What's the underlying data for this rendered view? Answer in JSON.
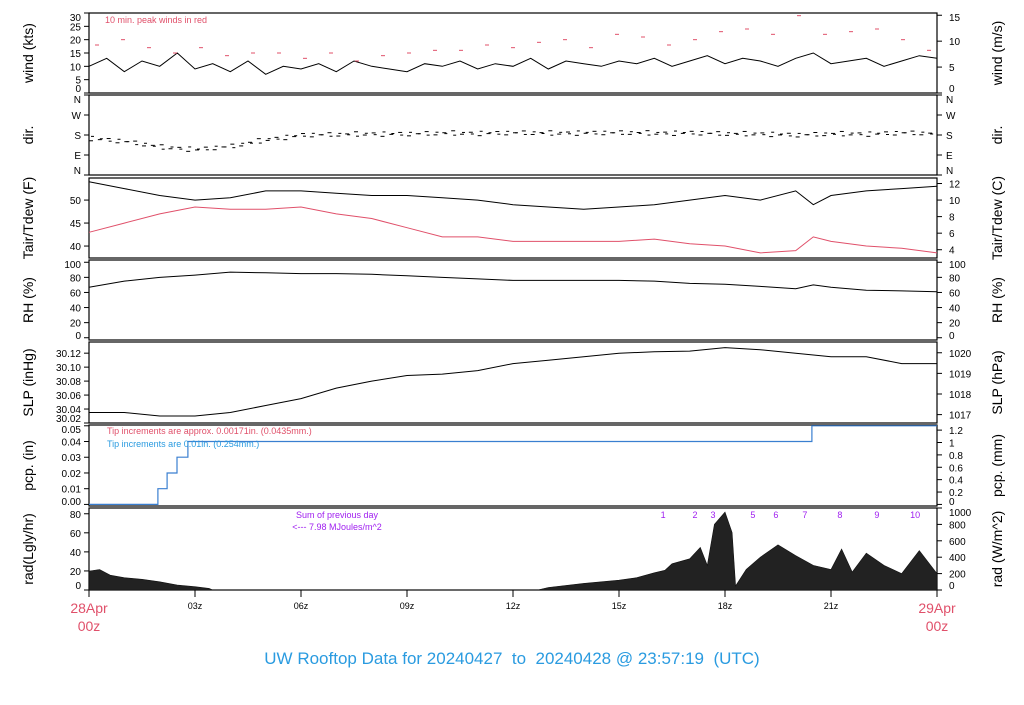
{
  "title": "UW Rooftop Data for 20240427  to  20240428 @ 23:57:19  (UTC)",
  "colors": {
    "main": "#000000",
    "peak": "#e0506a",
    "pcp": "#3a7fd0",
    "pcp_note_blue": "#2a9be0",
    "rad_note": "#a020f0",
    "date": "#e0506a",
    "title": "#2a9be0"
  },
  "chart_data": [
    {
      "type": "line",
      "ylabel": "wind (kts)",
      "ylabel_right": "wind (m/s)",
      "ylim": [
        0,
        30
      ],
      "yticks": [
        0,
        5,
        10,
        15,
        20,
        25,
        30
      ],
      "yticks_right": [
        0,
        5,
        10,
        15
      ],
      "annotation": "10 min. peak winds in red",
      "series": [
        {
          "x_step_hours": 0.5,
          "values": [
            10,
            13,
            8,
            12,
            10,
            15,
            9,
            11,
            8,
            12,
            7,
            10,
            9,
            11,
            8,
            12,
            10,
            9,
            8,
            11,
            10,
            12,
            9,
            11,
            10,
            13,
            9,
            12,
            11,
            10,
            12,
            11,
            13,
            10,
            12,
            14,
            11,
            13,
            12,
            10,
            13,
            15,
            11,
            12,
            13,
            10,
            12,
            14,
            13
          ]
        },
        {
          "name": "10 min. peak winds",
          "x_step_hours": 0.75,
          "values": [
            18,
            20,
            17,
            15,
            17,
            14,
            15,
            15,
            13,
            15,
            12,
            14,
            15,
            16,
            16,
            18,
            17,
            19,
            20,
            17,
            22,
            21,
            18,
            20,
            23,
            24,
            22,
            29,
            22,
            23,
            24,
            20,
            16
          ]
        }
      ]
    },
    {
      "type": "scatter",
      "ylabel": "dir.",
      "ylabel_right": "dir.",
      "ylim": [
        0,
        360
      ],
      "yticks": [
        "N",
        "E",
        "S",
        "W",
        "N"
      ],
      "x_step_hours": 1,
      "values": [
        165,
        150,
        125,
        115,
        130,
        160,
        180,
        182,
        185,
        185,
        188,
        188,
        190,
        188,
        190,
        190,
        188,
        190,
        185,
        185,
        180,
        185,
        185,
        190,
        185
      ]
    },
    {
      "type": "line",
      "ylabel": "Tair/Tdew (F)",
      "ylabel_right": "Tair/Tdew (C)",
      "ylim": [
        37.4,
        54.8
      ],
      "yticks": [
        40,
        45,
        50
      ],
      "yticks_right": [
        4,
        6,
        8,
        10,
        12
      ],
      "series": [
        {
          "x_hours": [
            0,
            1,
            2,
            3,
            4,
            5,
            6,
            7,
            8,
            9,
            10,
            11,
            12,
            13,
            14,
            15,
            16,
            17,
            18,
            19,
            20,
            20.5,
            21,
            22,
            23,
            24
          ],
          "values": [
            54,
            52.5,
            51,
            50,
            50.5,
            52,
            52,
            51.5,
            51,
            51,
            50.5,
            50,
            49,
            48.5,
            48,
            48.5,
            49,
            50,
            51,
            50,
            52,
            49,
            51,
            52,
            52.5,
            53
          ]
        },
        {
          "x_hours": [
            0,
            1,
            2,
            3,
            4,
            5,
            6,
            7,
            8,
            9,
            10,
            11,
            12,
            13,
            14,
            15,
            16,
            17,
            18,
            19,
            20,
            20.5,
            21,
            22,
            23,
            24
          ],
          "values": [
            43,
            45,
            47,
            48.5,
            48,
            48,
            48.5,
            47,
            46,
            44,
            42,
            42,
            41,
            41,
            41,
            41,
            41.5,
            40.5,
            40,
            38.5,
            39,
            42,
            41,
            40,
            39.5,
            38.5
          ]
        }
      ]
    },
    {
      "type": "line",
      "ylabel": "RH (%)",
      "ylabel_right": "RH (%)",
      "ylim": [
        -3,
        103
      ],
      "yticks": [
        0,
        20,
        40,
        60,
        80,
        100
      ],
      "x_hours": [
        0,
        1,
        2,
        3,
        4,
        5,
        6,
        7,
        8,
        9,
        10,
        11,
        12,
        13,
        14,
        15,
        16,
        17,
        18,
        19,
        20,
        20.5,
        21,
        22,
        23,
        24
      ],
      "values": [
        67,
        75,
        80,
        83,
        87,
        86,
        85,
        85,
        84,
        82,
        80,
        78,
        76,
        76,
        76,
        76,
        75,
        72,
        71,
        68,
        65,
        70,
        67,
        63,
        62,
        61
      ]
    },
    {
      "type": "line",
      "ylabel": "SLP (inHg)",
      "ylabel_right": "SLP (hPa)",
      "ylim": [
        30.02,
        30.136
      ],
      "yticks": [
        30.02,
        30.04,
        30.06,
        30.08,
        30.1,
        30.12
      ],
      "yticks_right": [
        1017,
        1018,
        1019,
        1020
      ],
      "x_step_hours": 1,
      "values": [
        30.035,
        30.035,
        30.03,
        30.03,
        30.035,
        30.045,
        30.055,
        30.07,
        30.08,
        30.088,
        30.09,
        30.095,
        30.105,
        30.11,
        30.115,
        30.12,
        30.122,
        30.123,
        30.128,
        30.125,
        30.12,
        30.115,
        30.115,
        30.105,
        30.105
      ]
    },
    {
      "type": "line",
      "ylabel": "pcp. (in)",
      "ylabel_right": "pcp. (mm)",
      "ylim": [
        -0.001,
        0.0505
      ],
      "yticks": [
        0.0,
        0.01,
        0.02,
        0.03,
        0.04,
        0.05
      ],
      "yticks_right": [
        0,
        0.2,
        0.4,
        0.6,
        0.8,
        1,
        1.2
      ],
      "annotations": [
        "Tip increments are approx. 0.00171in. (0.0435mm.)",
        "Tip increments are 0.01in. (0.254mm.)"
      ],
      "step_hours": [
        1.95,
        2.21,
        2.49,
        2.8,
        20.46
      ],
      "step_values": [
        0.01,
        0.02,
        0.03,
        0.04,
        0.05
      ]
    },
    {
      "type": "area",
      "ylabel": "rad(Lgly/hr)",
      "ylabel_right": "rad (W/m^2)",
      "ylim": [
        0,
        1000
      ],
      "yticks": [
        0,
        20,
        40,
        60,
        80
      ],
      "yticks_right": [
        0,
        200,
        400,
        600,
        800,
        1000
      ],
      "annotation": [
        "Sum of previous day",
        "<--- 7.98 MJoules/m^2"
      ],
      "markers": [
        {
          "label": "1",
          "hour": 16.25
        },
        {
          "label": "2",
          "hour": 17.15
        },
        {
          "label": "3",
          "hour": 17.66
        },
        {
          "label": "5",
          "hour": 18.79
        },
        {
          "label": "6",
          "hour": 19.44
        },
        {
          "label": "7",
          "hour": 20.26
        },
        {
          "label": "8",
          "hour": 21.25
        },
        {
          "label": "9",
          "hour": 22.3
        },
        {
          "label": "10",
          "hour": 23.38
        }
      ],
      "x_hours": [
        0,
        0.3,
        0.6,
        1,
        1.5,
        2,
        2.5,
        3,
        3.4,
        3.5,
        12.7,
        13,
        14,
        15,
        15.5,
        16,
        16.3,
        16.5,
        17,
        17.3,
        17.5,
        17.7,
        18,
        18.2,
        18.3,
        18.6,
        19,
        19.5,
        20,
        20.5,
        21,
        21.3,
        21.6,
        22,
        22.5,
        23,
        23.5,
        24
      ],
      "values": [
        230,
        250,
        180,
        150,
        130,
        100,
        60,
        40,
        20,
        0,
        0,
        30,
        80,
        120,
        150,
        210,
        240,
        320,
        380,
        520,
        300,
        800,
        950,
        700,
        50,
        250,
        400,
        550,
        420,
        300,
        250,
        500,
        220,
        450,
        300,
        200,
        480,
        200
      ]
    }
  ],
  "xaxis": {
    "ticks": [
      "03z",
      "06z",
      "09z",
      "12z",
      "15z",
      "18z",
      "21z"
    ],
    "tick_hours": [
      3,
      6,
      9,
      12,
      15,
      18,
      21
    ],
    "start": [
      "28Apr",
      "00z"
    ],
    "end": [
      "29Apr",
      "00z"
    ]
  }
}
